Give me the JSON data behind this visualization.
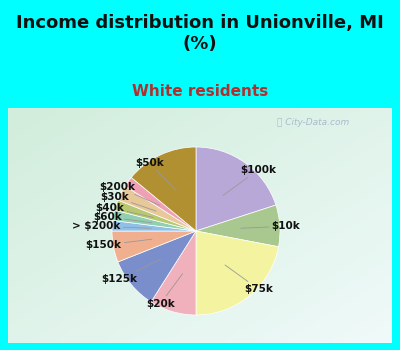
{
  "title": "Income distribution in Unionville, MI\n(%)",
  "subtitle": "White residents",
  "title_fontsize": 13,
  "subtitle_fontsize": 11,
  "label_fontsize": 7.5,
  "background_outer": "#00FFFF",
  "background_inner_top": "#e0f0e8",
  "background_inner_bot": "#e8f5ec",
  "slices": [
    {
      "label": "$100k",
      "value": 20,
      "color": "#b8a8d8"
    },
    {
      "label": "$10k",
      "value": 8,
      "color": "#a8c890"
    },
    {
      "label": "$75k",
      "value": 22,
      "color": "#f4f4a0"
    },
    {
      "label": "$20k",
      "value": 9,
      "color": "#f0b0bc"
    },
    {
      "label": "$125k",
      "value": 10,
      "color": "#7a8ecc"
    },
    {
      "label": "$150k",
      "value": 6,
      "color": "#f0b090"
    },
    {
      "label": "> $200k",
      "value": 2,
      "color": "#90c0e8"
    },
    {
      "label": "$60k",
      "value": 2,
      "color": "#90d0b0"
    },
    {
      "label": "$40k",
      "value": 2,
      "color": "#b8c870"
    },
    {
      "label": "$30k",
      "value": 3,
      "color": "#e8c898"
    },
    {
      "label": "$200k",
      "value": 2,
      "color": "#f0a0b4"
    },
    {
      "label": "$50k",
      "value": 14,
      "color": "#b09030"
    }
  ],
  "wedge_edge_color": "white",
  "wedge_linewidth": 0.5
}
